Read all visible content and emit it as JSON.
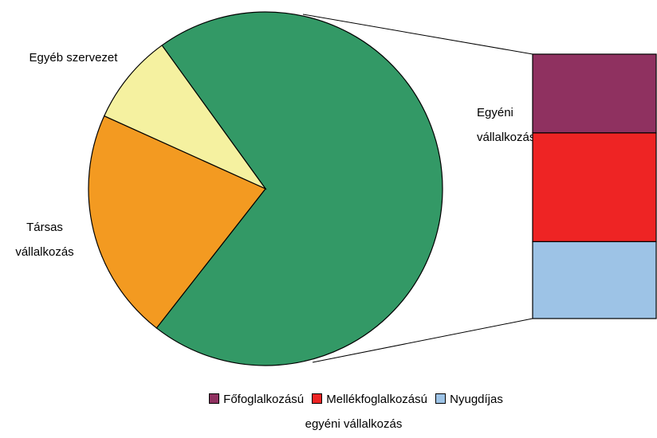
{
  "chart_data": {
    "type": "pie-of-bar",
    "categories": [
      "Egyéni vállalkozás",
      "Társas vállalkozás",
      "Egyéb szervezet"
    ],
    "values": [
      70.5,
      21.2,
      8.3
    ],
    "colors": [
      "#339966",
      "#f39a21",
      "#f5f1a0"
    ],
    "bar": {
      "categories": [
        "Főfoglalkozású",
        "Mellékfoglalkozású",
        "Nyugdíjas egyéni vállalkozás"
      ],
      "values": [
        21,
        29,
        20.5
      ],
      "colors": [
        "#8f3160",
        "#ee2424",
        "#9dc3e6"
      ]
    },
    "legend": "bottom"
  }
}
